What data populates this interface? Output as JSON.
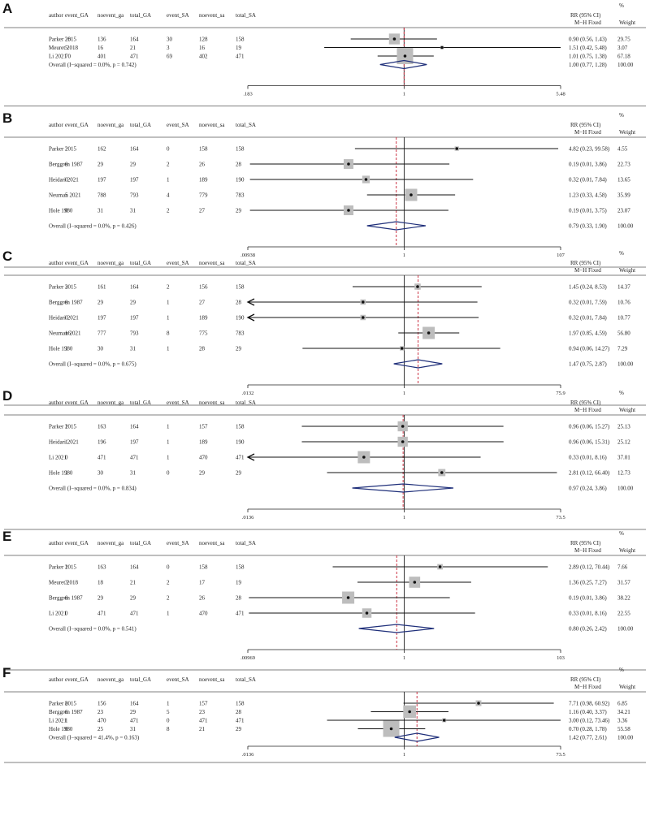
{
  "columns": [
    "author",
    "event_GA",
    "noevent_ga",
    "total_GA",
    "event_SA",
    "noevent_sa",
    "total_SA"
  ],
  "rr_header": "RR (95% CI)",
  "pct_header": "%",
  "weight_header": "Weight",
  "chart_data": [
    {
      "type": "forest",
      "panel": "A",
      "method": "M−H Fixed",
      "xscale": "log",
      "xticks": [
        ".183",
        "1",
        "5.48"
      ],
      "xlim": [
        0.183,
        5.48
      ],
      "studies": [
        {
          "author": "Parker 2015",
          "cells": [
            "28",
            "136",
            "164",
            "30",
            "128",
            "158"
          ],
          "rr": 0.9,
          "lo": 0.56,
          "hi": 1.43,
          "ci_text": "0.90 (0.56, 1.43)",
          "weight": "29.75"
        },
        {
          "author": "Meuret 2018",
          "cells": [
            "5",
            "16",
            "21",
            "3",
            "16",
            "19"
          ],
          "rr": 1.51,
          "lo": 0.42,
          "hi": 5.48,
          "ci_text": "1.51 (0.42, 5.48)",
          "weight": "3.07"
        },
        {
          "author": "Li 2021",
          "cells": [
            "70",
            "401",
            "471",
            "69",
            "402",
            "471"
          ],
          "rr": 1.01,
          "lo": 0.75,
          "hi": 1.38,
          "ci_text": "1.01 (0.75, 1.38)",
          "weight": "67.18"
        }
      ],
      "overall": {
        "label": "Overall  (I−squared = 0.0%, p = 0.742)",
        "rr": 1.0,
        "lo": 0.77,
        "hi": 1.28,
        "ci_text": "1.00 (0.77, 1.28)",
        "weight": "100.00"
      }
    },
    {
      "type": "forest",
      "panel": "B",
      "method": "M−H Fixed",
      "xscale": "log",
      "xticks": [
        ".00938",
        "1",
        "107"
      ],
      "xlim": [
        0.00938,
        107
      ],
      "studies": [
        {
          "author": "Parker 2015",
          "cells": [
            "2",
            "162",
            "164",
            "0",
            "158",
            "158"
          ],
          "rr": 4.82,
          "lo": 0.23,
          "hi": 99.58,
          "ci_text": "4.82 (0.23, 99.58)",
          "weight": "4.55"
        },
        {
          "author": "Berggren 1987",
          "cells": [
            "0",
            "29",
            "29",
            "2",
            "26",
            "28"
          ],
          "rr": 0.19,
          "lo": 0.01,
          "hi": 3.86,
          "ci_text": "0.19 (0.01, 3.86)",
          "weight": "22.73"
        },
        {
          "author": "Heidari 2021",
          "cells": [
            "0",
            "197",
            "197",
            "1",
            "189",
            "190"
          ],
          "rr": 0.32,
          "lo": 0.01,
          "hi": 7.84,
          "ci_text": "0.32 (0.01, 7.84)",
          "weight": "13.65"
        },
        {
          "author": "Neuman 2021",
          "cells": [
            "5",
            "788",
            "793",
            "4",
            "779",
            "783"
          ],
          "rr": 1.23,
          "lo": 0.33,
          "hi": 4.58,
          "ci_text": "1.23 (0.33, 4.58)",
          "weight": "35.99"
        },
        {
          "author": "Hole 1980",
          "cells": [
            "0",
            "31",
            "31",
            "2",
            "27",
            "29"
          ],
          "rr": 0.19,
          "lo": 0.01,
          "hi": 3.75,
          "ci_text": "0.19 (0.01, 3.75)",
          "weight": "23.07"
        }
      ],
      "overall": {
        "label": "Overall  (I−squared = 0.0%, p = 0.426)",
        "rr": 0.79,
        "lo": 0.33,
        "hi": 1.9,
        "ci_text": "0.79 (0.33, 1.90)",
        "weight": "100.00"
      }
    },
    {
      "type": "forest",
      "panel": "C",
      "method": "M−H Fixed",
      "xscale": "log",
      "xticks": [
        ".0132",
        "1",
        "75.9"
      ],
      "xlim": [
        0.0132,
        75.9
      ],
      "studies": [
        {
          "author": "Parker 2015",
          "cells": [
            "3",
            "161",
            "164",
            "2",
            "156",
            "158"
          ],
          "rr": 1.45,
          "lo": 0.24,
          "hi": 8.53,
          "ci_text": "1.45 (0.24, 8.53)",
          "weight": "14.37"
        },
        {
          "author": "Berggren 1987",
          "cells": [
            "0",
            "29",
            "29",
            "1",
            "27",
            "28"
          ],
          "rr": 0.32,
          "lo": 0.01,
          "hi": 7.59,
          "ci_text": "0.32 (0.01, 7.59)",
          "weight": "10.76"
        },
        {
          "author": "Heidari 2021",
          "cells": [
            "0",
            "197",
            "197",
            "1",
            "189",
            "190"
          ],
          "rr": 0.32,
          "lo": 0.01,
          "hi": 7.84,
          "ci_text": "0.32 (0.01, 7.84)",
          "weight": "10.77"
        },
        {
          "author": "Neuman 2021",
          "cells": [
            "16",
            "777",
            "793",
            "8",
            "775",
            "783"
          ],
          "rr": 1.97,
          "lo": 0.85,
          "hi": 4.59,
          "ci_text": "1.97 (0.85, 4.59)",
          "weight": "56.80"
        },
        {
          "author": "Hole 1980",
          "cells": [
            "1",
            "30",
            "31",
            "1",
            "28",
            "29"
          ],
          "rr": 0.94,
          "lo": 0.06,
          "hi": 14.27,
          "ci_text": "0.94 (0.06, 14.27)",
          "weight": "7.29"
        }
      ],
      "overall": {
        "label": "Overall  (I−squared = 0.0%, p = 0.675)",
        "rr": 1.47,
        "lo": 0.75,
        "hi": 2.87,
        "ci_text": "1.47 (0.75, 2.87)",
        "weight": "100.00"
      }
    },
    {
      "type": "forest",
      "panel": "D",
      "method": "M−H Fixed",
      "xscale": "log",
      "xticks": [
        ".0136",
        "1",
        "73.5"
      ],
      "xlim": [
        0.0136,
        73.5
      ],
      "studies": [
        {
          "author": "Parker 2015",
          "cells": [
            "1",
            "163",
            "164",
            "1",
            "157",
            "158"
          ],
          "rr": 0.96,
          "lo": 0.06,
          "hi": 15.27,
          "ci_text": "0.96 (0.06, 15.27)",
          "weight": "25.13"
        },
        {
          "author": "Heidari 2021",
          "cells": [
            "1",
            "196",
            "197",
            "1",
            "189",
            "190"
          ],
          "rr": 0.96,
          "lo": 0.06,
          "hi": 15.31,
          "ci_text": "0.96 (0.06, 15.31)",
          "weight": "25.12"
        },
        {
          "author": "Li 2021",
          "cells": [
            "0",
            "471",
            "471",
            "1",
            "470",
            "471"
          ],
          "rr": 0.33,
          "lo": 0.01,
          "hi": 8.16,
          "ci_text": "0.33 (0.01, 8.16)",
          "weight": "37.01"
        },
        {
          "author": "Hole 1980",
          "cells": [
            "1",
            "30",
            "31",
            "0",
            "29",
            "29"
          ],
          "rr": 2.81,
          "lo": 0.12,
          "hi": 66.4,
          "ci_text": "2.81 (0.12, 66.40)",
          "weight": "12.73"
        }
      ],
      "overall": {
        "label": "Overall  (I−squared = 0.0%, p = 0.834)",
        "rr": 0.97,
        "lo": 0.24,
        "hi": 3.86,
        "ci_text": "0.97 (0.24, 3.86)",
        "weight": "100.00"
      }
    },
    {
      "type": "forest",
      "panel": "E",
      "method": "M−H Fixed",
      "xscale": "log",
      "xticks": [
        ".00969",
        "1",
        "103"
      ],
      "xlim": [
        0.00969,
        103
      ],
      "studies": [
        {
          "author": "Parker 2015",
          "cells": [
            "1",
            "163",
            "164",
            "0",
            "158",
            "158"
          ],
          "rr": 2.89,
          "lo": 0.12,
          "hi": 70.44,
          "ci_text": "2.89 (0.12, 70.44)",
          "weight": "7.66"
        },
        {
          "author": "Meuret 2018",
          "cells": [
            "3",
            "18",
            "21",
            "2",
            "17",
            "19"
          ],
          "rr": 1.36,
          "lo": 0.25,
          "hi": 7.27,
          "ci_text": "1.36 (0.25, 7.27)",
          "weight": "31.57"
        },
        {
          "author": "Berggren 1987",
          "cells": [
            "0",
            "29",
            "29",
            "2",
            "26",
            "28"
          ],
          "rr": 0.19,
          "lo": 0.01,
          "hi": 3.86,
          "ci_text": "0.19 (0.01, 3.86)",
          "weight": "38.22"
        },
        {
          "author": "Li 2021",
          "cells": [
            "0",
            "471",
            "471",
            "1",
            "470",
            "471"
          ],
          "rr": 0.33,
          "lo": 0.01,
          "hi": 8.16,
          "ci_text": "0.33 (0.01, 8.16)",
          "weight": "22.55"
        }
      ],
      "overall": {
        "label": "Overall  (I−squared = 0.0%, p = 0.541)",
        "rr": 0.8,
        "lo": 0.26,
        "hi": 2.42,
        "ci_text": "0.80 (0.26, 2.42)",
        "weight": "100.00"
      }
    },
    {
      "type": "forest",
      "panel": "F",
      "method": "M−H Fixed",
      "xscale": "log",
      "xticks": [
        ".0136",
        "1",
        "73.5"
      ],
      "xlim": [
        0.0136,
        73.5
      ],
      "studies": [
        {
          "author": "Parker 2015",
          "cells": [
            "8",
            "156",
            "164",
            "1",
            "157",
            "158"
          ],
          "rr": 7.71,
          "lo": 0.98,
          "hi": 60.92,
          "ci_text": "7.71 (0.98, 60.92)",
          "weight": "6.85"
        },
        {
          "author": "Berggren 1987",
          "cells": [
            "6",
            "23",
            "29",
            "5",
            "23",
            "28"
          ],
          "rr": 1.16,
          "lo": 0.4,
          "hi": 3.37,
          "ci_text": "1.16 (0.40, 3.37)",
          "weight": "34.21"
        },
        {
          "author": "Li 2021",
          "cells": [
            "1",
            "470",
            "471",
            "0",
            "471",
            "471"
          ],
          "rr": 3.0,
          "lo": 0.12,
          "hi": 73.46,
          "ci_text": "3.00 (0.12, 73.46)",
          "weight": "3.36"
        },
        {
          "author": "Hole 1980",
          "cells": [
            "6",
            "25",
            "31",
            "8",
            "21",
            "29"
          ],
          "rr": 0.7,
          "lo": 0.28,
          "hi": 1.78,
          "ci_text": "0.70 (0.28, 1.78)",
          "weight": "55.58"
        }
      ],
      "overall": {
        "label": "Overall  (I−squared = 41.4%, p = 0.163)",
        "rr": 1.42,
        "lo": 0.77,
        "hi": 2.61,
        "ci_text": "1.42 (0.77, 2.61)",
        "weight": "100.00"
      }
    }
  ]
}
